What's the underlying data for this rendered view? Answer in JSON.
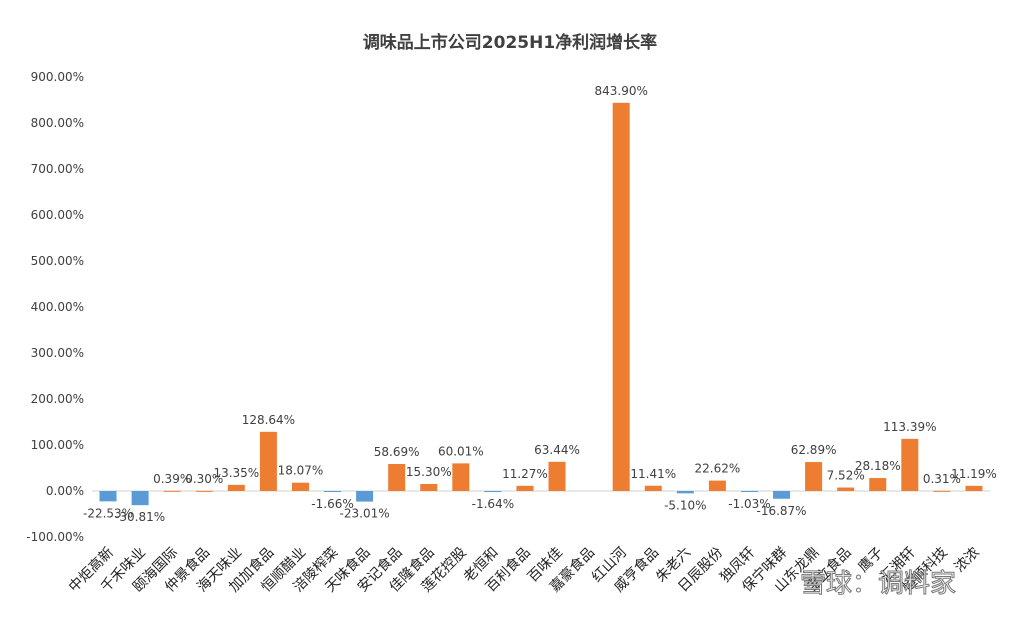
{
  "chart_data": {
    "type": "bar",
    "title": "调味品上市公司2025H1净利润增长率",
    "xlabel": "",
    "ylabel": "",
    "ylim": [
      -100,
      900
    ],
    "yticks": [
      -100,
      0,
      100,
      200,
      300,
      400,
      500,
      600,
      700,
      800,
      900
    ],
    "ytick_labels": [
      "-100.00%",
      "0.00%",
      "100.00%",
      "200.00%",
      "300.00%",
      "400.00%",
      "500.00%",
      "600.00%",
      "700.00%",
      "800.00%",
      "900.00%"
    ],
    "grid": false,
    "legend": "none",
    "colors": {
      "positive": "#ED7D31",
      "negative": "#5B9BD5"
    },
    "categories": [
      "中炬高新",
      "千禾味业",
      "颐海国际",
      "仲景食品",
      "海天味业",
      "加加食品",
      "恒顺醋业",
      "涪陵榨菜",
      "天味食品",
      "安记食品",
      "佳隆食品",
      "莲花控股",
      "老恒和",
      "百利食品",
      "百味佳",
      "嘉豪食品",
      "红山河",
      "威亨食品",
      "朱老六",
      "日辰股份",
      "独凤轩",
      "保宁味群",
      "山东龙鼎",
      "宝立食品",
      "鹰子",
      "汇湘轩",
      "恒顺科技",
      "浓浓"
    ],
    "values": [
      -22.53,
      -30.81,
      0.39,
      0.3,
      13.35,
      128.64,
      18.07,
      -1.66,
      -23.01,
      58.69,
      15.3,
      60.01,
      -1.64,
      11.27,
      63.44,
      null,
      843.9,
      11.41,
      -5.1,
      22.62,
      -1.03,
      -16.87,
      62.89,
      7.52,
      28.18,
      113.39,
      0.31,
      11.19
    ],
    "data_labels": [
      "-22.53%",
      "-30.81%",
      "0.39%",
      "0.30%",
      "13.35%",
      "128.64%",
      "18.07%",
      "-1.66%",
      "-23.01%",
      "58.69%",
      "15.30%",
      "60.01%",
      "-1.64%",
      "11.27%",
      "63.44%",
      "",
      "843.90%",
      "11.41%",
      "-5.10%",
      "22.62%",
      "-1.03%",
      "-16.87%",
      "62.89%",
      "7.52%",
      "28.18%",
      "113.39%",
      "0.31%",
      "11.19%"
    ]
  },
  "watermark": "雪球：调料家"
}
